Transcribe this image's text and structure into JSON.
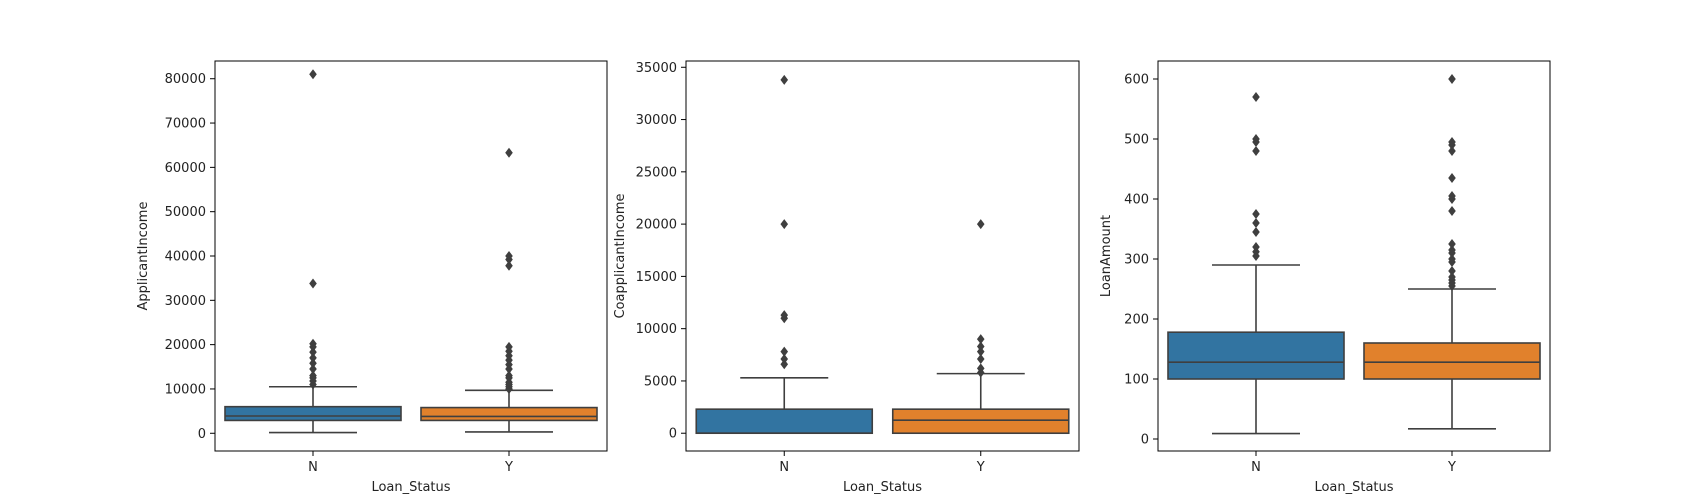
{
  "colors": {
    "N": "#3274a1",
    "Y": "#e1812c",
    "line": "#3f3f3f",
    "axis": "#000000"
  },
  "chart_data": [
    {
      "type": "box",
      "xlabel": "Loan_Status",
      "ylabel": "ApplicantIncome",
      "categories": [
        "N",
        "Y"
      ],
      "ylim": [
        -4000,
        84000
      ],
      "yticks": [
        0,
        10000,
        20000,
        30000,
        40000,
        50000,
        60000,
        70000,
        80000
      ],
      "boxes": [
        {
          "category": "N",
          "whisker_low": 150,
          "q1": 2900,
          "median": 3900,
          "q3": 6000,
          "whisker_high": 10500,
          "outliers": [
            11000,
            11800,
            12500,
            13000,
            14500,
            15800,
            17000,
            18300,
            19500,
            20200,
            33800,
            81000
          ]
        },
        {
          "category": "Y",
          "whisker_low": 300,
          "q1": 2900,
          "median": 3800,
          "q3": 5800,
          "whisker_high": 9700,
          "outliers": [
            10000,
            10500,
            11000,
            11500,
            12500,
            13000,
            14500,
            15500,
            16500,
            17500,
            18500,
            19500,
            37800,
            39200,
            40000,
            63300
          ]
        }
      ]
    },
    {
      "type": "box",
      "xlabel": "Loan_Status",
      "ylabel": "CoapplicantIncome",
      "categories": [
        "N",
        "Y"
      ],
      "ylim": [
        -1700,
        35600
      ],
      "yticks": [
        0,
        5000,
        10000,
        15000,
        20000,
        25000,
        30000,
        35000
      ],
      "boxes": [
        {
          "category": "N",
          "whisker_low": 0,
          "q1": 0,
          "median": 0,
          "q3": 2300,
          "whisker_high": 5300,
          "outliers": [
            6600,
            7100,
            7800,
            11000,
            11300,
            20000,
            33800
          ]
        },
        {
          "category": "Y",
          "whisker_low": 0,
          "q1": 0,
          "median": 1250,
          "q3": 2300,
          "whisker_high": 5700,
          "outliers": [
            5800,
            6200,
            7100,
            7800,
            8300,
            9000,
            20000
          ]
        }
      ]
    },
    {
      "type": "box",
      "xlabel": "Loan_Status",
      "ylabel": "LoanAmount",
      "categories": [
        "N",
        "Y"
      ],
      "ylim": [
        -20,
        630
      ],
      "yticks": [
        0,
        100,
        200,
        300,
        400,
        500,
        600
      ],
      "boxes": [
        {
          "category": "N",
          "whisker_low": 9,
          "q1": 100,
          "median": 128,
          "q3": 178,
          "whisker_high": 290,
          "outliers": [
            305,
            312,
            320,
            345,
            360,
            375,
            480,
            495,
            500,
            570
          ]
        },
        {
          "category": "Y",
          "whisker_low": 17,
          "q1": 100,
          "median": 128,
          "q3": 160,
          "whisker_high": 250,
          "outliers": [
            255,
            260,
            265,
            270,
            280,
            295,
            300,
            310,
            315,
            325,
            380,
            400,
            405,
            435,
            480,
            490,
            495,
            600
          ]
        }
      ]
    }
  ]
}
